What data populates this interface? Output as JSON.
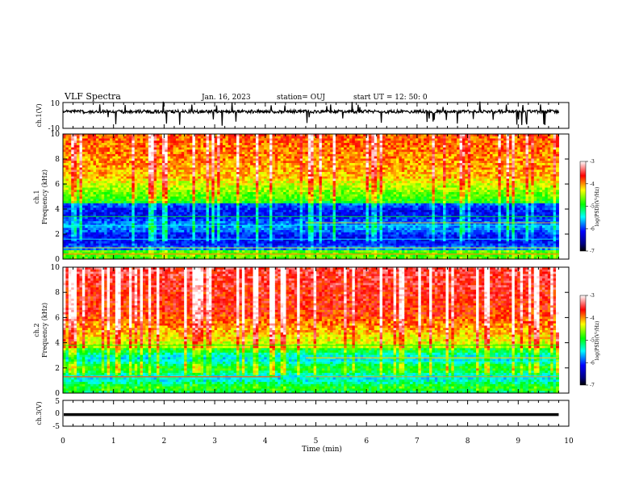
{
  "header": {
    "title": "VLF Spectra",
    "date": "Jan. 16, 2023",
    "station": "station= OUJ",
    "start_ut": "start  UT =   12: 50: 0"
  },
  "chart_data": [
    {
      "type": "line",
      "panel": "ch1-waveform",
      "ylabel": "ch.1(V)",
      "ylim": [
        -10,
        10
      ],
      "yticks": [
        "10",
        "-10"
      ],
      "xlim": [
        0,
        10
      ],
      "series": [
        {
          "values_description": "noisy signal near 3 V with negative spikes to about -8 V",
          "baseline": 3
        }
      ]
    },
    {
      "type": "heatmap",
      "panel": "ch1-spectrogram",
      "ylabel_top": "ch.1",
      "ylabel": "Frequency (kHz)",
      "ylim": [
        0,
        10
      ],
      "yticks": [
        "0",
        "2",
        "4",
        "6",
        "8",
        "10"
      ],
      "xlim": [
        0,
        10
      ],
      "colorbar": {
        "label": "log(PSD)(V²/Hz)",
        "range": [
          -7,
          -3
        ],
        "ticks": [
          "-3",
          "-4",
          "-5",
          "-6",
          "-7"
        ]
      }
    },
    {
      "type": "heatmap",
      "panel": "ch2-spectrogram",
      "ylabel_top": "ch.2",
      "ylabel": "Frequency (kHz)",
      "ylim": [
        0,
        10
      ],
      "yticks": [
        "0",
        "2",
        "4",
        "6",
        "8",
        "10"
      ],
      "xlim": [
        0,
        10
      ],
      "colorbar": {
        "label": "log(PSD)(V²/Hz)",
        "range": [
          -7,
          -3
        ],
        "ticks": [
          "-3",
          "-4",
          "-5",
          "-6",
          "-7"
        ]
      }
    },
    {
      "type": "line",
      "panel": "ch3-waveform",
      "ylabel": "ch.3(V)",
      "ylim": [
        -5,
        5
      ],
      "yticks": [
        "5",
        "0",
        "-5"
      ],
      "xlim": [
        0,
        10
      ],
      "series": [
        {
          "values_description": "flat line",
          "baseline": -0.5
        }
      ]
    }
  ],
  "xaxis": {
    "label": "Time (min)",
    "ticks": [
      "0",
      "1",
      "2",
      "3",
      "4",
      "5",
      "6",
      "7",
      "8",
      "9",
      "10"
    ]
  },
  "colors": {
    "colormap": [
      "#000080",
      "#0000ff",
      "#00ffff",
      "#00ff00",
      "#ffff00",
      "#ff0000",
      "#ffffff"
    ]
  }
}
